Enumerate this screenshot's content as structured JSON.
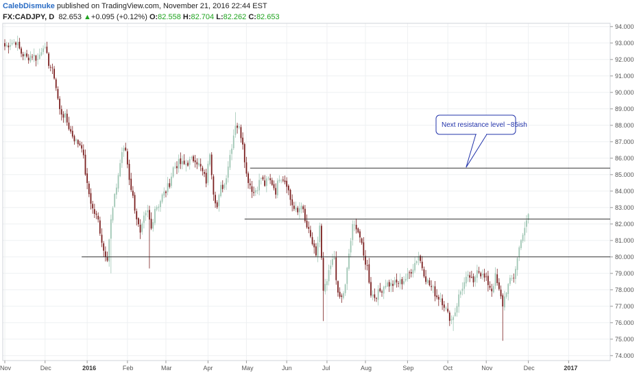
{
  "header": {
    "author": "CalebDismuke",
    "published": " published on TradingView.com, November 21, 2016 22:44 EST",
    "symbol": "FX:CADJPY, D",
    "last": "82.653",
    "change": "+0.095 (+0.12%)",
    "open_label": "O:",
    "open": "82.558",
    "high_label": "H:",
    "high": "82.704",
    "low_label": "L:",
    "low": "82.262",
    "close_label": "C:",
    "close": "82.653"
  },
  "colors": {
    "up": "#9fc6b4",
    "down": "#7a1f1f",
    "grid": "#eef0f2",
    "level_line": "#333333",
    "annotation_border": "#2233aa",
    "header_positive": "#1fa31f"
  },
  "chart_data": {
    "type": "candlestick",
    "title": "",
    "ylim": [
      73.7,
      94.2
    ],
    "y_ticks": [
      "74.000",
      "75.000",
      "76.000",
      "77.000",
      "78.000",
      "79.000",
      "80.000",
      "81.000",
      "82.000",
      "83.000",
      "84.000",
      "85.000",
      "86.000",
      "87.000",
      "88.000",
      "89.000",
      "90.000",
      "91.000",
      "92.000",
      "93.000",
      "94.000"
    ],
    "x_ticks": [
      {
        "label": "Nov",
        "bold": false,
        "bar": 0
      },
      {
        "label": "Dec",
        "bold": false,
        "bar": 22
      },
      {
        "label": "2016",
        "bold": true,
        "bar": 45
      },
      {
        "label": "Feb",
        "bold": false,
        "bar": 67
      },
      {
        "label": "Mar",
        "bold": false,
        "bar": 88
      },
      {
        "label": "Apr",
        "bold": false,
        "bar": 111
      },
      {
        "label": "May",
        "bold": false,
        "bar": 132
      },
      {
        "label": "Jun",
        "bold": false,
        "bar": 154
      },
      {
        "label": "Jul",
        "bold": false,
        "bar": 176
      },
      {
        "label": "Aug",
        "bold": false,
        "bar": 197
      },
      {
        "label": "Sep",
        "bold": false,
        "bar": 220
      },
      {
        "label": "Oct",
        "bold": false,
        "bar": 242
      },
      {
        "label": "Nov",
        "bold": false,
        "bar": 263
      },
      {
        "label": "Dec",
        "bold": false,
        "bar": 286
      },
      {
        "label": "2017",
        "bold": true,
        "bar": 308
      }
    ],
    "levels": [
      {
        "price": 85.4,
        "from_bar": 134,
        "to_bar": 312
      },
      {
        "price": 82.3,
        "from_bar": 131,
        "to_bar": 312
      },
      {
        "price": 80.0,
        "from_bar": 42,
        "to_bar": 312
      }
    ],
    "annotation": {
      "text": "Next resistance level ~85ish",
      "pointer_price": 85.4,
      "pointer_bar": 252
    },
    "anchors": [
      [
        0,
        92.8
      ],
      [
        3,
        93.0
      ],
      [
        6,
        93.1
      ],
      [
        9,
        92.4
      ],
      [
        12,
        92.1
      ],
      [
        15,
        92.3
      ],
      [
        18,
        92.0
      ],
      [
        21,
        92.9
      ],
      [
        24,
        91.8
      ],
      [
        27,
        91.0
      ],
      [
        30,
        88.9
      ],
      [
        33,
        88.5
      ],
      [
        36,
        87.6
      ],
      [
        39,
        87.0
      ],
      [
        42,
        86.8
      ],
      [
        45,
        84.3
      ],
      [
        48,
        82.9
      ],
      [
        51,
        82.2
      ],
      [
        54,
        80.4
      ],
      [
        56,
        80.0
      ],
      [
        58,
        82.2
      ],
      [
        61,
        84.3
      ],
      [
        64,
        86.4
      ],
      [
        66,
        86.5
      ],
      [
        68,
        84.8
      ],
      [
        70,
        83.6
      ],
      [
        72,
        82.4
      ],
      [
        74,
        81.3
      ],
      [
        76,
        82.3
      ],
      [
        78,
        82.7
      ],
      [
        80,
        81.7
      ],
      [
        82,
        83.0
      ],
      [
        84,
        83.2
      ],
      [
        86,
        83.7
      ],
      [
        88,
        84.0
      ],
      [
        90,
        84.5
      ],
      [
        92,
        85.4
      ],
      [
        95,
        85.7
      ],
      [
        98,
        85.6
      ],
      [
        101,
        85.8
      ],
      [
        104,
        86.0
      ],
      [
        107,
        85.4
      ],
      [
        110,
        84.6
      ],
      [
        112,
        86.4
      ],
      [
        114,
        84.0
      ],
      [
        116,
        83.0
      ],
      [
        118,
        84.2
      ],
      [
        120,
        84.4
      ],
      [
        122,
        85.6
      ],
      [
        124,
        86.8
      ],
      [
        126,
        88.1
      ],
      [
        128,
        87.8
      ],
      [
        130,
        87.0
      ],
      [
        132,
        85.0
      ],
      [
        134,
        84.4
      ],
      [
        136,
        83.9
      ],
      [
        138,
        84.3
      ],
      [
        140,
        84.8
      ],
      [
        142,
        84.4
      ],
      [
        144,
        84.7
      ],
      [
        146,
        84.5
      ],
      [
        148,
        84.0
      ],
      [
        150,
        84.9
      ],
      [
        152,
        84.8
      ],
      [
        154,
        84.5
      ],
      [
        156,
        83.5
      ],
      [
        158,
        82.9
      ],
      [
        160,
        82.7
      ],
      [
        162,
        83.3
      ],
      [
        164,
        82.1
      ],
      [
        166,
        81.5
      ],
      [
        168,
        80.8
      ],
      [
        170,
        79.9
      ],
      [
        172,
        81.9
      ],
      [
        174,
        77.8
      ],
      [
        176,
        78.5
      ],
      [
        178,
        79.4
      ],
      [
        180,
        80.0
      ],
      [
        182,
        77.6
      ],
      [
        184,
        77.5
      ],
      [
        186,
        78.2
      ],
      [
        188,
        80.2
      ],
      [
        190,
        81.8
      ],
      [
        192,
        81.9
      ],
      [
        194,
        81.2
      ],
      [
        196,
        80.0
      ],
      [
        198,
        79.4
      ],
      [
        200,
        77.8
      ],
      [
        202,
        77.6
      ],
      [
        205,
        77.9
      ],
      [
        208,
        78.4
      ],
      [
        211,
        78.3
      ],
      [
        214,
        78.4
      ],
      [
        217,
        78.5
      ],
      [
        220,
        78.8
      ],
      [
        223,
        79.4
      ],
      [
        226,
        80.1
      ],
      [
        228,
        79.4
      ],
      [
        230,
        78.7
      ],
      [
        232,
        78.3
      ],
      [
        234,
        78.0
      ],
      [
        236,
        77.6
      ],
      [
        238,
        77.5
      ],
      [
        240,
        77.1
      ],
      [
        242,
        76.5
      ],
      [
        244,
        76.2
      ],
      [
        246,
        76.7
      ],
      [
        248,
        77.6
      ],
      [
        250,
        78.2
      ],
      [
        252,
        78.6
      ],
      [
        254,
        78.8
      ],
      [
        256,
        78.3
      ],
      [
        258,
        79.4
      ],
      [
        260,
        79.0
      ],
      [
        262,
        78.7
      ],
      [
        264,
        78.4
      ],
      [
        266,
        78.0
      ],
      [
        268,
        78.8
      ],
      [
        270,
        77.9
      ],
      [
        272,
        77.1
      ],
      [
        274,
        78.0
      ],
      [
        276,
        78.5
      ],
      [
        278,
        78.8
      ],
      [
        280,
        79.9
      ],
      [
        282,
        81.2
      ],
      [
        284,
        81.6
      ],
      [
        286,
        82.6
      ]
    ]
  }
}
